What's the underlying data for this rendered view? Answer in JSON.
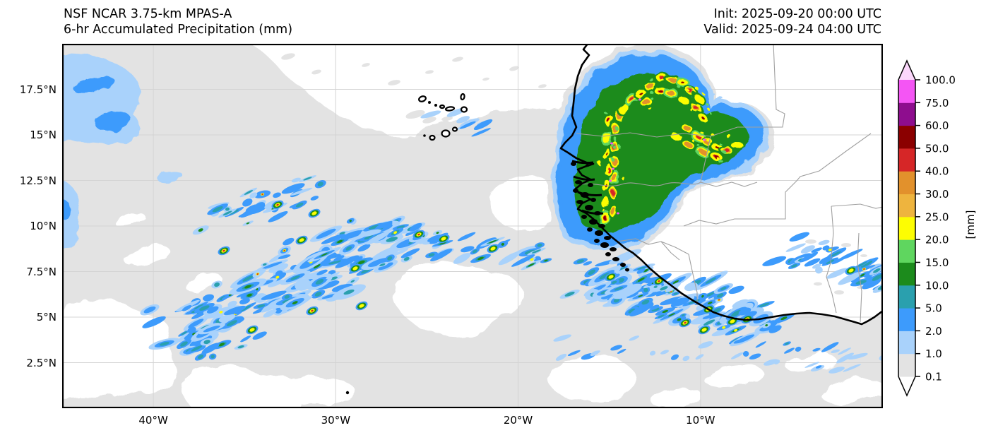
{
  "header": {
    "title_line1": "NSF NCAR 3.75-km MPAS-A",
    "title_line2": "6-hr Accumulated Precipitation (mm)",
    "init": "Init: 2025-09-20 00:00 UTC",
    "valid": "Valid: 2025-09-24 04:00 UTC"
  },
  "axes": {
    "x_tick_labels": [
      "40°W",
      "30°W",
      "20°W",
      "10°W"
    ],
    "y_tick_labels": [
      "17.5°N",
      "15°N",
      "12.5°N",
      "10°N",
      "7.5°N",
      "5°N",
      "2.5°N"
    ]
  },
  "colorbar": {
    "unit_label": "[mm]",
    "tick_labels_top_to_bottom": [
      "100.0",
      "75.0",
      "60.0",
      "50.0",
      "40.0",
      "30.0",
      "25.0",
      "20.0",
      "15.0",
      "10.0",
      "5.0",
      "2.0",
      "1.0",
      "0.1"
    ]
  },
  "chart_data": {
    "type": "heatmap",
    "subtype": "geographic-precipitation-map",
    "title": "NSF NCAR 3.75-km MPAS-A — 6-hr Accumulated Precipitation (mm)",
    "init_time": "2025-09-20 00:00 UTC",
    "valid_time": "2025-09-24 04:00 UTC",
    "units": "mm",
    "extent": {
      "lon_min": -45,
      "lon_max": 0,
      "lat_min": 0,
      "lat_max": 20
    },
    "lon_ticks": [
      -40,
      -30,
      -20,
      -10
    ],
    "lat_ticks": [
      17.5,
      15,
      12.5,
      10,
      7.5,
      5,
      2.5
    ],
    "levels_mm": [
      0.1,
      1.0,
      2.0,
      5.0,
      10.0,
      15.0,
      20.0,
      25.0,
      30.0,
      40.0,
      50.0,
      60.0,
      75.0,
      100.0
    ],
    "colors_low_to_high": [
      "#ffffff",
      "#e3e3e3",
      "#a9d2fb",
      "#3d9bfc",
      "#2aa0ae",
      "#1c8b1c",
      "#5fd65f",
      "#fdfd02",
      "#eeb43e",
      "#e2912c",
      "#d62627",
      "#8b0000",
      "#8e0d8e",
      "#f455f4",
      "#fbd7fb"
    ],
    "legend_position": "right",
    "grid": true,
    "features": [
      {
        "name": "intense-mcs-arc",
        "description": "Arc-shaped mesoscale convective system over Senegal / western Mali with embedded cores of 40-100+ mm (yellow/orange/red/dark-red, isolated magenta)",
        "approx_location": "12-17.5N, 8-16W"
      },
      {
        "name": "atlantic-itcz-convection-west",
        "description": "Broad field of scattered convective cells (1-25 mm) over the tropical Atlantic",
        "approx_location": "3-10N, 24-38W"
      },
      {
        "name": "gulf-of-guinea-offshore-cells",
        "description": "Diagonal streaks of convective cells offshore Liberia / Ivory Coast with a few 20-50 mm cores",
        "approx_location": "3-8N, 5-15W"
      },
      {
        "name": "light-precip-background",
        "description": "Widespread 0.1-1 mm light-gray areas over the ocean",
        "approx_location": "domain-wide"
      },
      {
        "name": "cape-verde-islands",
        "description": "Black island outlines",
        "approx_location": "15-17N, 23-25W"
      },
      {
        "name": "west-africa-coastline",
        "description": "Thick black coastline with dense estuary detail near Senegal / Guinea-Bissau",
        "approx_location": "Mauritania to Ghana"
      },
      {
        "name": "country-borders",
        "description": "Thin gray political borders over West Africa"
      }
    ]
  }
}
